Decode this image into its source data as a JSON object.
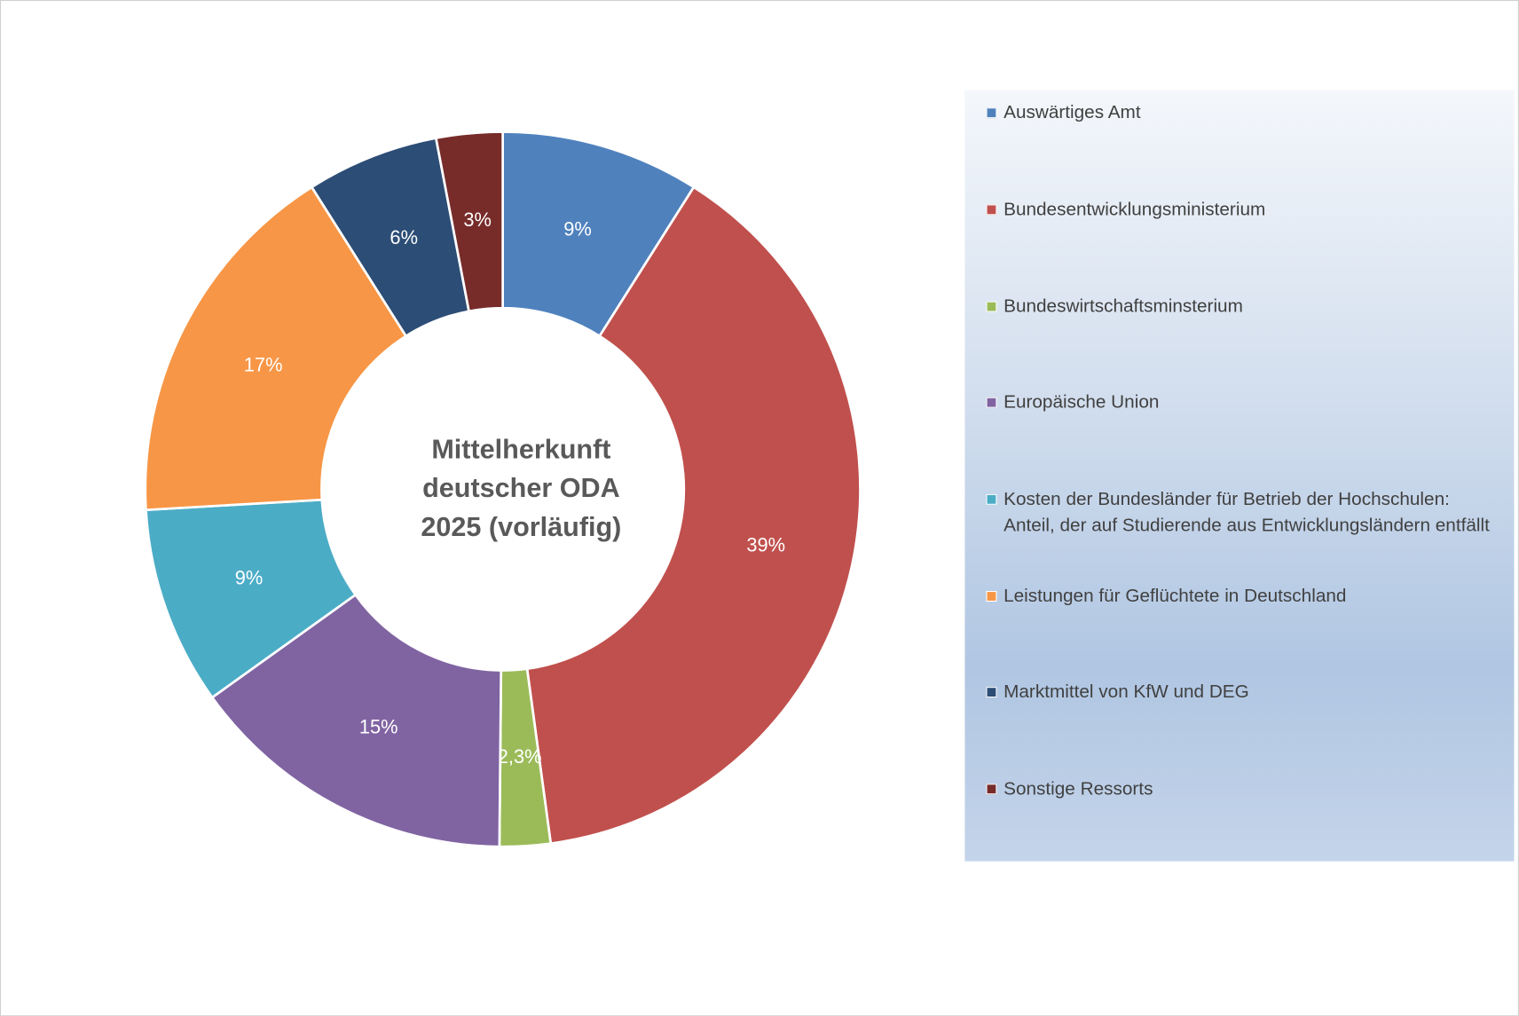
{
  "chart_data": {
    "type": "pie",
    "title": "Mittelherkunft deutscher ODA 2025 (vorläufig)",
    "categories": [
      "Auswärtiges Amt",
      "Bundesentwicklungsministerium",
      "Bundeswirtschaftsminsterium",
      "Europäische Union",
      "Kosten der Bundesländer für Betrieb der Hochschulen: Anteil, der auf Studierende aus Entwicklungsländern entfällt",
      "Leistungen für Geflüchtete in Deutschland",
      "Marktmittel von KfW und DEG",
      "Sonstige Ressorts"
    ],
    "values": [
      9,
      39,
      2.3,
      15,
      9,
      17,
      6,
      3
    ],
    "value_labels": [
      "9%",
      "39%",
      "2,3%",
      "15%",
      "9%",
      "17%",
      "6%",
      "3%"
    ],
    "colors": [
      "#4f81bd",
      "#c0504d",
      "#9bbb59",
      "#8064a2",
      "#4bacc6",
      "#f79646",
      "#2c4d75",
      "#772c2a"
    ],
    "legend": "right"
  }
}
